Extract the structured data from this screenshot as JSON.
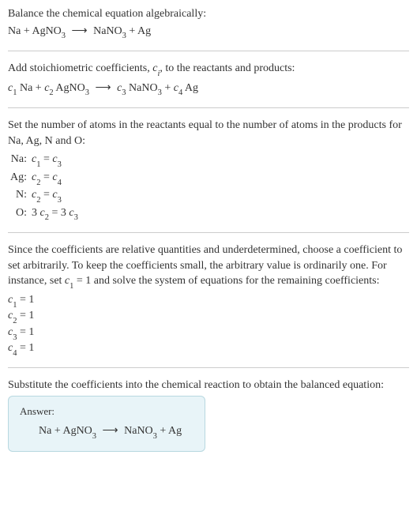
{
  "intro": {
    "line1": "Balance the chemical equation algebraically:",
    "eq_lhs1": "Na",
    "eq_plus1": " + ",
    "eq_lhs2": "AgNO",
    "eq_lhs2_sub": "3",
    "arrow": " ⟶ ",
    "eq_rhs1": "NaNO",
    "eq_rhs1_sub": "3",
    "eq_plus2": " + ",
    "eq_rhs2": "Ag"
  },
  "stoich": {
    "text": "Add stoichiometric coefficients, ",
    "ci": "c",
    "ci_sub": "i",
    "text2": ", to the reactants and products:",
    "c1": "c",
    "c1_sub": "1",
    "sp1": " Na + ",
    "c2": "c",
    "c2_sub": "2",
    "sp2": " AgNO",
    "sp2_sub": "3",
    "arrow": " ⟶ ",
    "c3": "c",
    "c3_sub": "3",
    "sp3": " NaNO",
    "sp3_sub": "3",
    "sp3b": " + ",
    "c4": "c",
    "c4_sub": "4",
    "sp4": " Ag"
  },
  "atoms": {
    "text": "Set the number of atoms in the reactants equal to the number of atoms in the products for Na, Ag, N and O:",
    "rows": [
      {
        "label": "Na:",
        "lhs_c": "c",
        "lhs_sub": "1",
        "eq": " = ",
        "rhs_c": "c",
        "rhs_sub": "3",
        "pre_l": "",
        "pre_r": ""
      },
      {
        "label": "Ag:",
        "lhs_c": "c",
        "lhs_sub": "2",
        "eq": " = ",
        "rhs_c": "c",
        "rhs_sub": "4",
        "pre_l": "",
        "pre_r": ""
      },
      {
        "label": "N:",
        "lhs_c": "c",
        "lhs_sub": "2",
        "eq": " = ",
        "rhs_c": "c",
        "rhs_sub": "3",
        "pre_l": "",
        "pre_r": ""
      },
      {
        "label": "O:",
        "lhs_c": "c",
        "lhs_sub": "2",
        "eq": " = 3 ",
        "rhs_c": "c",
        "rhs_sub": "3",
        "pre_l": "3 ",
        "pre_r": ""
      }
    ]
  },
  "solve": {
    "text1": "Since the coefficients are relative quantities and underdetermined, choose a coefficient to set arbitrarily. To keep the coefficients small, the arbitrary value is ordinarily one. For instance, set ",
    "cvar": "c",
    "cvar_sub": "1",
    "text2": " = 1 and solve the system of equations for the remaining coefficients:",
    "lines": [
      {
        "c": "c",
        "sub": "1",
        "val": " = 1"
      },
      {
        "c": "c",
        "sub": "2",
        "val": " = 1"
      },
      {
        "c": "c",
        "sub": "3",
        "val": " = 1"
      },
      {
        "c": "c",
        "sub": "4",
        "val": " = 1"
      }
    ]
  },
  "final": {
    "text": "Substitute the coefficients into the chemical reaction to obtain the balanced equation:",
    "answer_label": "Answer:",
    "eq_lhs1": "Na",
    "eq_plus1": " + ",
    "eq_lhs2": "AgNO",
    "eq_lhs2_sub": "3",
    "arrow": " ⟶ ",
    "eq_rhs1": "NaNO",
    "eq_rhs1_sub": "3",
    "eq_plus2": " + ",
    "eq_rhs2": "Ag"
  }
}
